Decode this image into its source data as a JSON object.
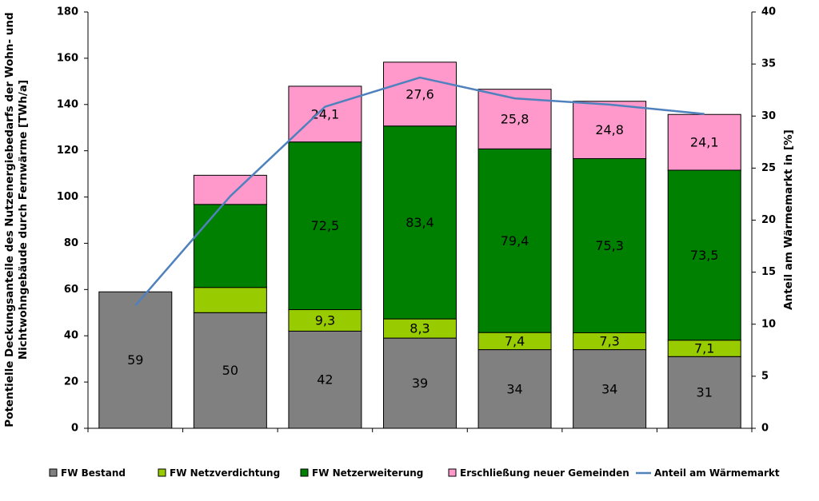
{
  "chart_data": {
    "type": "bar",
    "stacked": true,
    "categories": [
      "",
      "",
      "",
      "",
      "",
      "",
      ""
    ],
    "series": [
      {
        "name": "FW Bestand",
        "color": "#808080",
        "values": [
          59,
          50,
          42,
          39,
          34,
          34,
          31
        ],
        "labels": [
          "59",
          "50",
          "42",
          "39",
          "34",
          "34",
          "31"
        ]
      },
      {
        "name": "FW Netzverdichtung",
        "color": "#99cc00",
        "values": [
          0,
          10.9,
          9.3,
          8.3,
          7.4,
          7.3,
          7.1
        ],
        "labels": [
          "",
          "",
          "9,3",
          "8,3",
          "7,4",
          "7,3",
          "7,1"
        ]
      },
      {
        "name": "FW Netzerweiterung",
        "color": "#008000",
        "values": [
          0,
          35.9,
          72.5,
          83.4,
          79.4,
          75.3,
          73.5
        ],
        "labels": [
          "",
          "",
          "72,5",
          "83,4",
          "79,4",
          "75,3",
          "73,5"
        ]
      },
      {
        "name": "Erschließung neuer Gemeinden",
        "color": "#ff99cc",
        "values": [
          0,
          12.6,
          24.1,
          27.6,
          25.8,
          24.8,
          24.1
        ],
        "labels": [
          "",
          "",
          "24,1",
          "27,6",
          "25,8",
          "24,8",
          "24,1"
        ]
      }
    ],
    "line": {
      "name": "Anteil am Wärmemarkt",
      "color": "#4f81bd",
      "values": [
        11.8,
        22.3,
        30.9,
        33.7,
        31.7,
        31.1,
        30.2
      ]
    },
    "ylabel": "Potentielle Deckungsanteile des Nutzenergiebedarfs der Wohn- und Nichtwohngebäude durch Fernwärme [TWh/a]",
    "ylabel_lines": [
      "Potentielle Deckungsanteile des Nutzenergiebedarfs der Wohn- und",
      "Nichtwohngebäude durch Fernwärme [TWh/a]"
    ],
    "y2label": "Anteil am Wärmemarkt in [%]",
    "ylim": [
      0,
      180
    ],
    "yticks": [
      0,
      20,
      40,
      60,
      80,
      100,
      120,
      140,
      160,
      180
    ],
    "y2lim": [
      0,
      40
    ],
    "y2ticks": [
      0,
      5,
      10,
      15,
      20,
      25,
      30,
      35,
      40
    ],
    "grid": false,
    "legend_position": "bottom"
  }
}
